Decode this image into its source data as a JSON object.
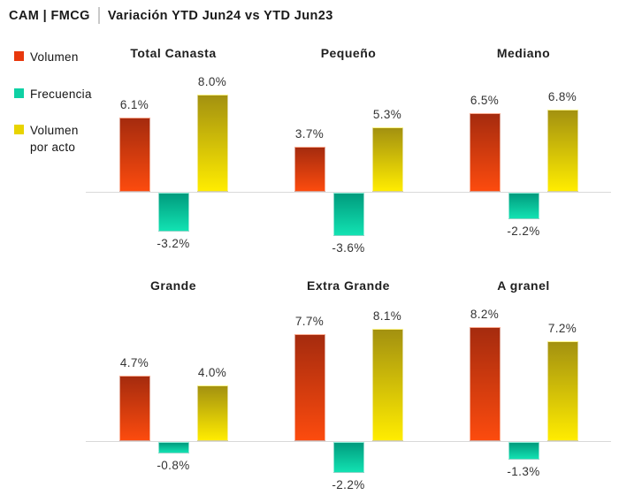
{
  "header": {
    "brand": "CAM | FMCG",
    "title": "Variación YTD Jun24 vs YTD Jun23"
  },
  "legend": [
    {
      "label": "Volumen",
      "color": "#E8380D"
    },
    {
      "label": "Frecuencia",
      "color": "#0ED1A4"
    },
    {
      "label": "Volumen por acto",
      "color": "#E8D400"
    }
  ],
  "chart_data": {
    "type": "bar",
    "title": "Variación YTD Jun24 vs YTD Jun23",
    "subtitle_brand": "CAM | FMCG",
    "series": [
      "Volumen",
      "Frecuencia",
      "Volumen por acto"
    ],
    "unit": "%",
    "value_label_format": "one-decimal-percent",
    "legend_position": "left",
    "grid": false,
    "axis_baseline_value": 0,
    "baseline_color": "#D9D9D9",
    "panels": [
      {
        "title": "Total Canasta",
        "values": [
          6.1,
          -3.2,
          8.0
        ],
        "labels": [
          "6.1%",
          "-3.2%",
          "8.0%"
        ]
      },
      {
        "title": "Pequeño",
        "values": [
          3.7,
          -3.6,
          5.3
        ],
        "labels": [
          "3.7%",
          "-3.6%",
          "5.3%"
        ]
      },
      {
        "title": "Mediano",
        "values": [
          6.5,
          -2.2,
          6.8
        ],
        "labels": [
          "6.5%",
          "-2.2%",
          "6.8%"
        ]
      },
      {
        "title": "Grande",
        "values": [
          4.7,
          -0.8,
          4.0
        ],
        "labels": [
          "4.7%",
          "-0.8%",
          "4.0%"
        ]
      },
      {
        "title": "Extra Grande",
        "values": [
          7.7,
          -2.2,
          8.1
        ],
        "labels": [
          "7.7%",
          "-2.2%",
          "8.1%"
        ]
      },
      {
        "title": "A granel",
        "values": [
          8.2,
          -1.3,
          7.2
        ],
        "labels": [
          "8.2%",
          "-1.3%",
          "7.2%"
        ]
      }
    ],
    "bar_colors": [
      {
        "name": "Volumen",
        "top": "#A52B0E",
        "bottom": "#FC4B0E"
      },
      {
        "name": "Frecuencia",
        "top": "#009B7D",
        "bottom": "#12E2B2"
      },
      {
        "name": "Volumen por acto",
        "top": "#A39110",
        "bottom": "#FFEC00"
      }
    ]
  }
}
